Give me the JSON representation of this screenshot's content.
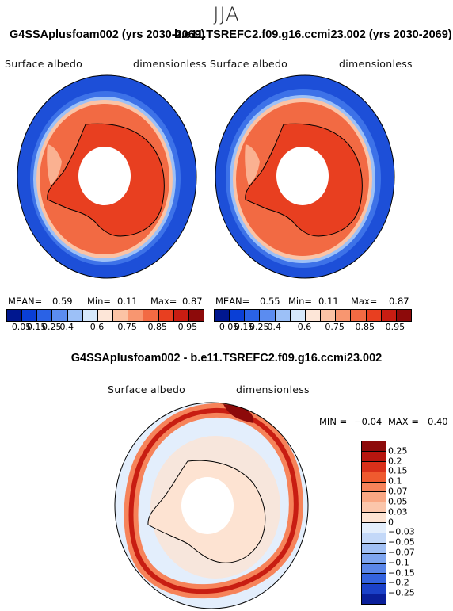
{
  "season": "JJA",
  "panels": [
    {
      "title": "G4SSAplusfoam002 (yrs 2030-2069)",
      "variable": "Surface  albedo",
      "units": "dimensionless",
      "mean_label": "MEAN=",
      "mean": "0.59",
      "min_label": "Min=",
      "min": "0.11",
      "max_label": "Max=",
      "max": "0.87"
    },
    {
      "title": "b.e11.TSREFC2.f09.g16.ccmi23.002 (yrs 2030-2069)",
      "variable": "Surface  albedo",
      "units": "dimensionless",
      "mean_label": "MEAN=",
      "mean": "0.55",
      "min_label": "Min=",
      "min": "0.11",
      "max_label": "Max=",
      "max": "0.87"
    }
  ],
  "abs_colorbar": {
    "colors": [
      "#00178f",
      "#0a3fd6",
      "#2a62e6",
      "#5b8cf0",
      "#9cc0f7",
      "#d6e8fb",
      "#fde6d8",
      "#fbc3a5",
      "#f89670",
      "#f26a43",
      "#e83f20",
      "#c81d12",
      "#8d0a0a"
    ],
    "ticks": [
      "0.05",
      "0.15",
      "0.25",
      "0.4",
      "0.6",
      "0.75",
      "0.85",
      "0.95"
    ]
  },
  "diff": {
    "title": "G4SSAplusfoam002 - b.e11.TSREFC2.f09.g16.ccmi23.002",
    "variable": "Surface  albedo",
    "units": "dimensionless",
    "min_label": "MIN =",
    "min": "−0.04",
    "max_label": "MAX =",
    "max": "0.40"
  },
  "diff_colorbar": {
    "colors": [
      "#8d0a0a",
      "#b7160f",
      "#d9301a",
      "#ef5a2f",
      "#f6835a",
      "#f9a783",
      "#fbc6ab",
      "#fde3d2",
      "#e3eefc",
      "#c3d8f8",
      "#a1c0f4",
      "#7ea5ef",
      "#5a86e8",
      "#3463de",
      "#1b41c8",
      "#0a1f9a"
    ],
    "ticks": [
      "0.25",
      "0.2",
      "0.15",
      "0.1",
      "0.07",
      "0.05",
      "0.03",
      "0",
      "−0.03",
      "−0.05",
      "−0.07",
      "−0.1",
      "−0.15",
      "−0.2",
      "−0.25"
    ]
  }
}
